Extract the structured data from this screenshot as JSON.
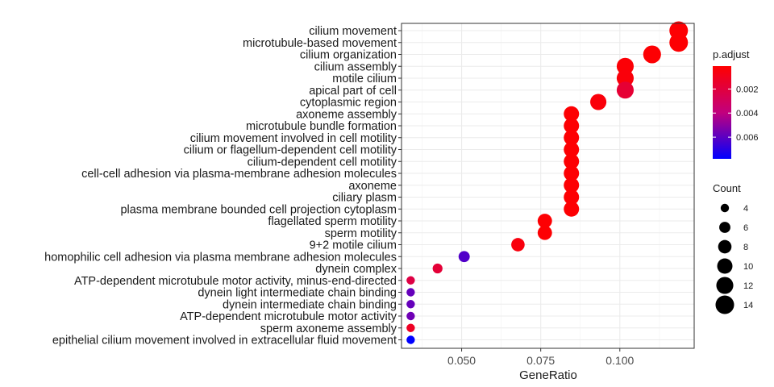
{
  "chart_data": {
    "type": "scatter",
    "subtype": "dot-plot",
    "title": "",
    "xlabel": "GeneRatio",
    "ylabel": "",
    "xlim": [
      0.031,
      0.1235
    ],
    "x_ticks": [
      {
        "value": 0.05,
        "label": "0.050"
      },
      {
        "value": 0.075,
        "label": "0.075"
      },
      {
        "value": 0.1,
        "label": "0.100"
      }
    ],
    "grid": true,
    "points": [
      {
        "term": "cilium movement",
        "gene_ratio": 0.1186,
        "count": 14,
        "p_adjust": 0.0002
      },
      {
        "term": "microtubule-based movement",
        "gene_ratio": 0.1186,
        "count": 14,
        "p_adjust": 0.0002
      },
      {
        "term": "cilium organization",
        "gene_ratio": 0.1102,
        "count": 13,
        "p_adjust": 0.0002
      },
      {
        "term": "cilium assembly",
        "gene_ratio": 0.1017,
        "count": 12,
        "p_adjust": 0.0003
      },
      {
        "term": "motile cilium",
        "gene_ratio": 0.1017,
        "count": 12,
        "p_adjust": 0.0004
      },
      {
        "term": "apical part of cell",
        "gene_ratio": 0.1017,
        "count": 12,
        "p_adjust": 0.0017
      },
      {
        "term": "cytoplasmic region",
        "gene_ratio": 0.0932,
        "count": 11,
        "p_adjust": 0.0004
      },
      {
        "term": "axoneme assembly",
        "gene_ratio": 0.0847,
        "count": 10,
        "p_adjust": 0.0002
      },
      {
        "term": "microtubule bundle formation",
        "gene_ratio": 0.0847,
        "count": 10,
        "p_adjust": 0.0002
      },
      {
        "term": "cilium movement involved in cell motility",
        "gene_ratio": 0.0847,
        "count": 10,
        "p_adjust": 0.0002
      },
      {
        "term": "cilium or flagellum-dependent cell motility",
        "gene_ratio": 0.0847,
        "count": 10,
        "p_adjust": 0.0002
      },
      {
        "term": "cilium-dependent cell motility",
        "gene_ratio": 0.0847,
        "count": 10,
        "p_adjust": 0.0002
      },
      {
        "term": "cell-cell adhesion via plasma-membrane adhesion molecules",
        "gene_ratio": 0.0847,
        "count": 10,
        "p_adjust": 0.0002
      },
      {
        "term": "axoneme",
        "gene_ratio": 0.0847,
        "count": 10,
        "p_adjust": 0.0002
      },
      {
        "term": "ciliary plasm",
        "gene_ratio": 0.0847,
        "count": 10,
        "p_adjust": 0.0002
      },
      {
        "term": "plasma membrane bounded cell projection cytoplasm",
        "gene_ratio": 0.0847,
        "count": 10,
        "p_adjust": 0.0002
      },
      {
        "term": "flagellated sperm motility",
        "gene_ratio": 0.0763,
        "count": 9,
        "p_adjust": 0.0002
      },
      {
        "term": "sperm motility",
        "gene_ratio": 0.0763,
        "count": 9,
        "p_adjust": 0.0002
      },
      {
        "term": "9+2 motile cilium",
        "gene_ratio": 0.0678,
        "count": 8,
        "p_adjust": 0.0005
      },
      {
        "term": "homophilic cell adhesion via plasma membrane adhesion molecules",
        "gene_ratio": 0.0508,
        "count": 6,
        "p_adjust": 0.0062
      },
      {
        "term": "dynein complex",
        "gene_ratio": 0.0424,
        "count": 5,
        "p_adjust": 0.0018
      },
      {
        "term": "ATP-dependent microtubule motor activity, minus-end-directed",
        "gene_ratio": 0.0339,
        "count": 4,
        "p_adjust": 0.0022
      },
      {
        "term": "dynein light intermediate chain binding",
        "gene_ratio": 0.0339,
        "count": 4,
        "p_adjust": 0.0058
      },
      {
        "term": "dynein intermediate chain binding",
        "gene_ratio": 0.0339,
        "count": 4,
        "p_adjust": 0.0058
      },
      {
        "term": "ATP-dependent microtubule motor activity",
        "gene_ratio": 0.0339,
        "count": 4,
        "p_adjust": 0.0056
      },
      {
        "term": "sperm axoneme assembly",
        "gene_ratio": 0.0339,
        "count": 4,
        "p_adjust": 0.0012
      },
      {
        "term": "epithelial cilium movement involved in extracellular fluid movement",
        "gene_ratio": 0.0339,
        "count": 4,
        "p_adjust": 0.0078
      }
    ],
    "color_legend": {
      "title": "p.adjust",
      "low_color": "#FF0000",
      "high_color": "#0000FF",
      "range": [
        0.0001,
        0.0078
      ],
      "ticks": [
        {
          "value": 0.002,
          "label": "0.002"
        },
        {
          "value": 0.004,
          "label": "0.004"
        },
        {
          "value": 0.006,
          "label": "0.006"
        }
      ]
    },
    "size_legend": {
      "title": "Count",
      "values": [
        4,
        6,
        8,
        10,
        12,
        14
      ],
      "labels": [
        "4",
        "6",
        "8",
        "10",
        "12",
        "14"
      ]
    },
    "colors": {
      "panel_border": "#333333",
      "grid_major": "#ebebeb",
      "grid_minor": "#f5f5f5",
      "tick": "#333333"
    }
  }
}
